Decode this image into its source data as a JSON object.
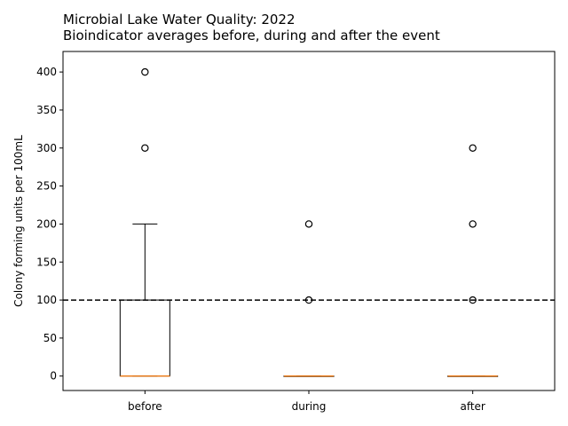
{
  "chart_data": {
    "type": "box",
    "title": "Microbial Lake Water Quality: 2022",
    "subtitle": "Bioindicator averages before, during and after the event",
    "xlabel": "",
    "ylabel": "Colony forming units per 100mL",
    "ylim": [
      -19,
      427
    ],
    "yticks": [
      0,
      50,
      100,
      150,
      200,
      250,
      300,
      350,
      400
    ],
    "grid": false,
    "categories": [
      "before",
      "during",
      "after"
    ],
    "boxes": [
      {
        "category": "before",
        "whisker_low": 0,
        "q1": 0,
        "median": 0,
        "q3": 100,
        "whisker_high": 200,
        "outliers": [
          300,
          400
        ]
      },
      {
        "category": "during",
        "whisker_low": 0,
        "q1": 0,
        "median": 0,
        "q3": 0,
        "whisker_high": 0,
        "outliers": [
          100,
          200
        ]
      },
      {
        "category": "after",
        "whisker_low": 0,
        "q1": 0,
        "median": 0,
        "q3": 0,
        "whisker_high": 0,
        "outliers": [
          100,
          200,
          300
        ]
      }
    ],
    "reference_line": {
      "y": 100,
      "style": "dashed",
      "color": "#000000"
    },
    "colors": {
      "box": "#000000",
      "median": "#ff7f0e",
      "outlier": "#000000",
      "axes": "#000000"
    }
  }
}
